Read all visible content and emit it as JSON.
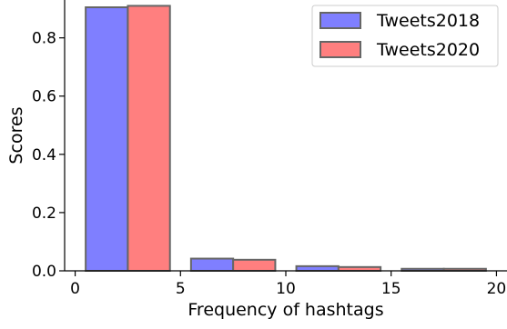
{
  "chart_data": {
    "type": "bar",
    "xlabel": "Frequency of hashtags",
    "ylabel": "Scores",
    "xlim": [
      -0.5,
      20.5
    ],
    "ylim": [
      0,
      0.93
    ],
    "xticks": [
      0,
      5,
      10,
      15,
      20
    ],
    "xtick_labels": [
      "0",
      "5",
      "10",
      "15",
      "20"
    ],
    "yticks": [
      0.0,
      0.2,
      0.4,
      0.6,
      0.8
    ],
    "ytick_labels": [
      "0.0",
      "0.2",
      "0.4",
      "0.6",
      "0.8"
    ],
    "grid": false,
    "legend_position": "top-right",
    "bin_width": 2,
    "series": [
      {
        "name": "Tweets2018",
        "color": "#7f7fff",
        "x": [
          1.5,
          6.5,
          11.5,
          16.5
        ],
        "values": [
          0.905,
          0.042,
          0.016,
          0.007
        ]
      },
      {
        "name": "Tweets2020",
        "color": "#ff7f7f",
        "x": [
          3.5,
          8.5,
          13.5,
          18.5
        ],
        "values": [
          0.91,
          0.038,
          0.013,
          0.007
        ]
      }
    ]
  }
}
